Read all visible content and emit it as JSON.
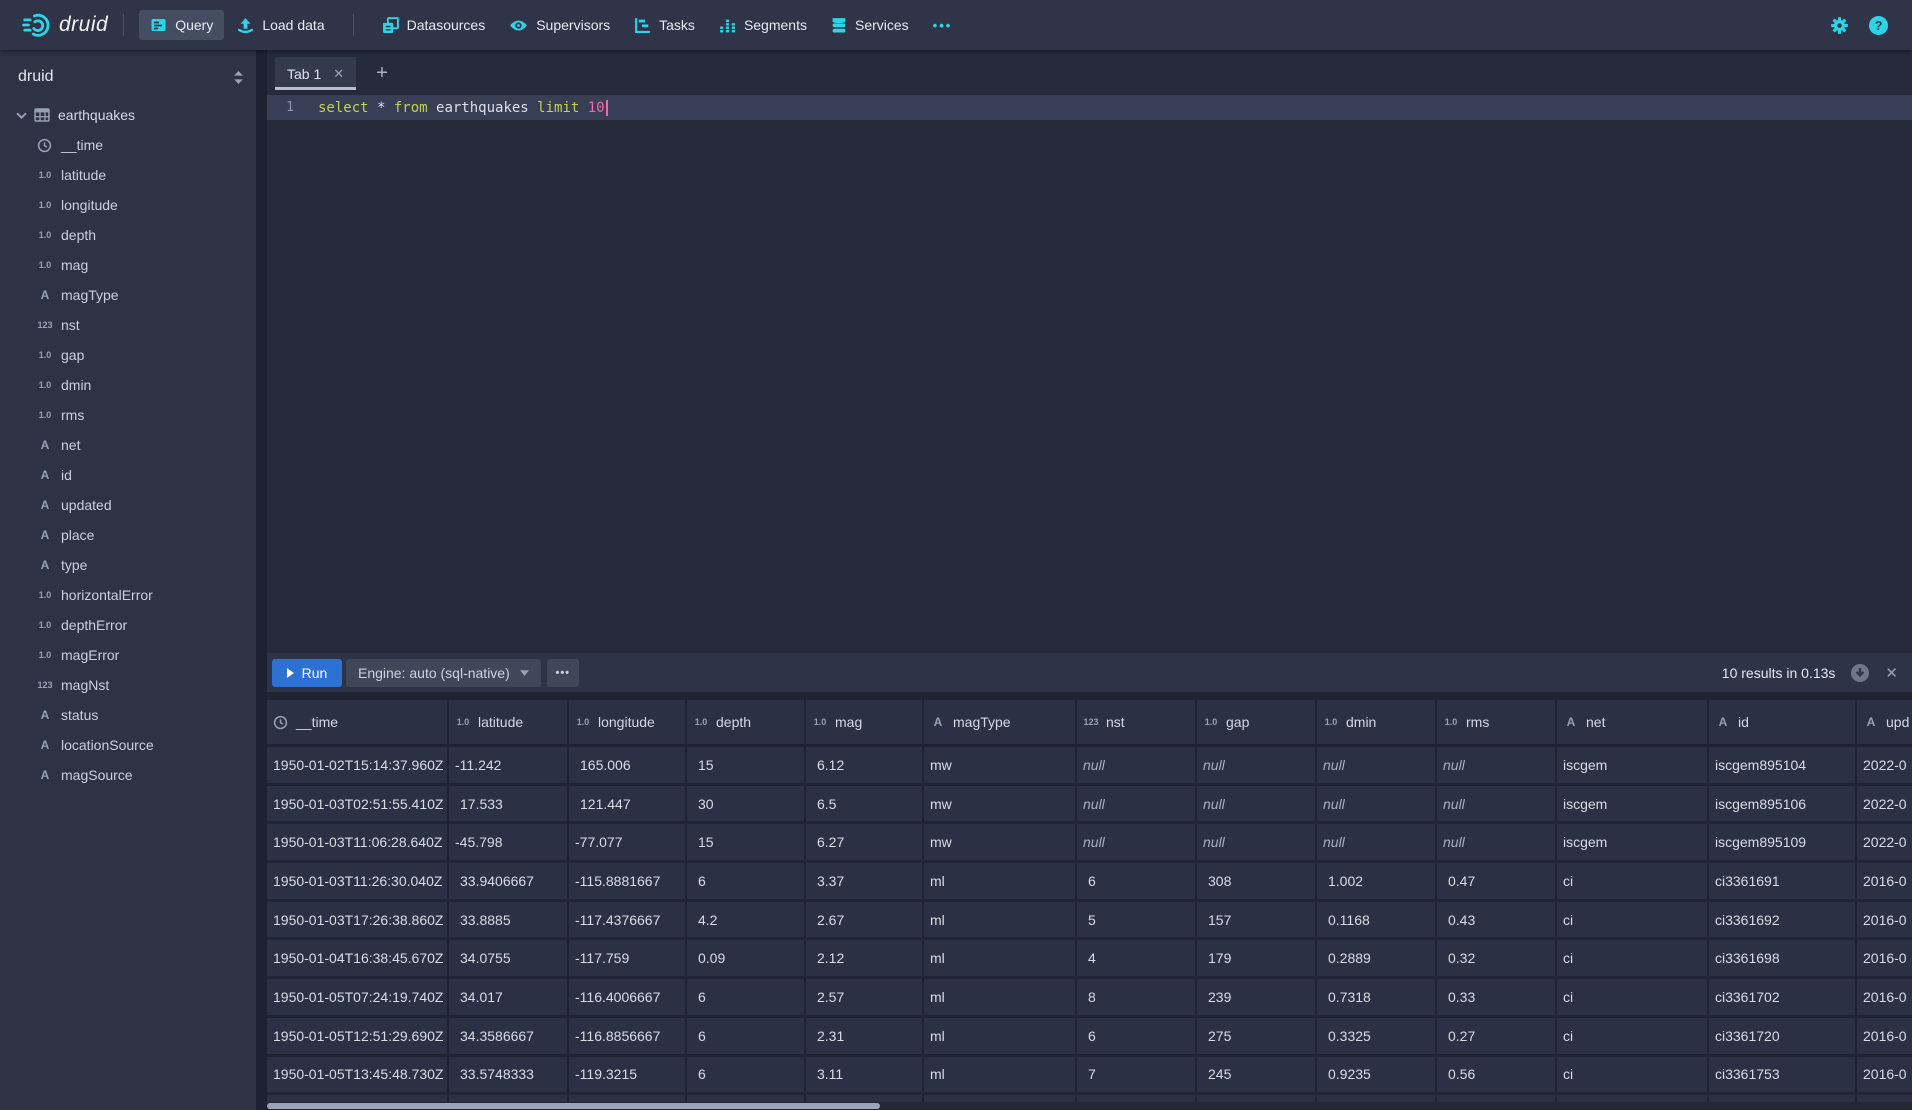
{
  "navbar": {
    "brand": "druid",
    "items": [
      {
        "label": "Query",
        "icon": "query-icon",
        "active": true,
        "divider_before": false
      },
      {
        "label": "Load data",
        "icon": "load-data-icon",
        "active": false,
        "divider_before": false
      },
      {
        "label": "Datasources",
        "icon": "datasources-icon",
        "active": false,
        "divider_before": true
      },
      {
        "label": "Supervisors",
        "icon": "supervisors-icon",
        "active": false,
        "divider_before": false
      },
      {
        "label": "Tasks",
        "icon": "tasks-icon",
        "active": false,
        "divider_before": false
      },
      {
        "label": "Segments",
        "icon": "segments-icon",
        "active": false,
        "divider_before": false
      },
      {
        "label": "Services",
        "icon": "services-icon",
        "active": false,
        "divider_before": false
      }
    ],
    "more_label": "•••",
    "accent_color": "#2cd5e6"
  },
  "sidebar": {
    "schema": "druid",
    "table": "earthquakes",
    "fields": [
      {
        "name": "__time",
        "type": "time"
      },
      {
        "name": "latitude",
        "type": "float"
      },
      {
        "name": "longitude",
        "type": "float"
      },
      {
        "name": "depth",
        "type": "float"
      },
      {
        "name": "mag",
        "type": "float"
      },
      {
        "name": "magType",
        "type": "string"
      },
      {
        "name": "nst",
        "type": "int"
      },
      {
        "name": "gap",
        "type": "float"
      },
      {
        "name": "dmin",
        "type": "float"
      },
      {
        "name": "rms",
        "type": "float"
      },
      {
        "name": "net",
        "type": "string"
      },
      {
        "name": "id",
        "type": "string"
      },
      {
        "name": "updated",
        "type": "string"
      },
      {
        "name": "place",
        "type": "string"
      },
      {
        "name": "type",
        "type": "string"
      },
      {
        "name": "horizontalError",
        "type": "float"
      },
      {
        "name": "depthError",
        "type": "float"
      },
      {
        "name": "magError",
        "type": "float"
      },
      {
        "name": "magNst",
        "type": "int"
      },
      {
        "name": "status",
        "type": "string"
      },
      {
        "name": "locationSource",
        "type": "string"
      },
      {
        "name": "magSource",
        "type": "string"
      }
    ]
  },
  "type_tags": {
    "float": "1.0",
    "int": "123",
    "string": "A"
  },
  "tabs": {
    "active": "Tab 1",
    "add_label": "+"
  },
  "editor": {
    "line_number": "1",
    "tokens": [
      {
        "text": "select",
        "type": "keyword"
      },
      {
        "text": "*",
        "type": "plain"
      },
      {
        "text": "from",
        "type": "keyword"
      },
      {
        "text": "earthquakes",
        "type": "plain"
      },
      {
        "text": "limit",
        "type": "keyword"
      },
      {
        "text": "10",
        "type": "number"
      }
    ]
  },
  "runbar": {
    "run_label": "Run",
    "engine_label": "Engine: auto (sql-native)",
    "more_label": "•••",
    "results_text": "10 results in 0.13s",
    "run_color": "#2d72d2"
  },
  "table": {
    "columns": [
      {
        "label": "__time",
        "type": "time"
      },
      {
        "label": "latitude",
        "type": "float"
      },
      {
        "label": "longitude",
        "type": "float"
      },
      {
        "label": "depth",
        "type": "float"
      },
      {
        "label": "mag",
        "type": "float"
      },
      {
        "label": "magType",
        "type": "string"
      },
      {
        "label": "nst",
        "type": "int"
      },
      {
        "label": "gap",
        "type": "float"
      },
      {
        "label": "dmin",
        "type": "float"
      },
      {
        "label": "rms",
        "type": "float"
      },
      {
        "label": "net",
        "type": "string"
      },
      {
        "label": "id",
        "type": "string"
      },
      {
        "label": "upd",
        "type": "string"
      }
    ],
    "rows": [
      [
        "1950-01-02T15:14:37.960Z",
        "-11.242",
        "165.006",
        "15",
        "6.12",
        "mw",
        "null",
        "null",
        "null",
        "null",
        "iscgem",
        "iscgem895104",
        "2022-0"
      ],
      [
        "1950-01-03T02:51:55.410Z",
        "17.533",
        "121.447",
        "30",
        "6.5",
        "mw",
        "null",
        "null",
        "null",
        "null",
        "iscgem",
        "iscgem895106",
        "2022-0"
      ],
      [
        "1950-01-03T11:06:28.640Z",
        "-45.798",
        "-77.077",
        "15",
        "6.27",
        "mw",
        "null",
        "null",
        "null",
        "null",
        "iscgem",
        "iscgem895109",
        "2022-0"
      ],
      [
        "1950-01-03T11:26:30.040Z",
        "33.9406667",
        "-115.8881667",
        "6",
        "3.37",
        "ml",
        "6",
        "308",
        "1.002",
        "0.47",
        "ci",
        "ci3361691",
        "2016-0"
      ],
      [
        "1950-01-03T17:26:38.860Z",
        "33.8885",
        "-117.4376667",
        "4.2",
        "2.67",
        "ml",
        "5",
        "157",
        "0.1168",
        "0.43",
        "ci",
        "ci3361692",
        "2016-0"
      ],
      [
        "1950-01-04T16:38:45.670Z",
        "34.0755",
        "-117.759",
        "0.09",
        "2.12",
        "ml",
        "4",
        "179",
        "0.2889",
        "0.32",
        "ci",
        "ci3361698",
        "2016-0"
      ],
      [
        "1950-01-05T07:24:19.740Z",
        "34.017",
        "-116.4006667",
        "6",
        "2.57",
        "ml",
        "8",
        "239",
        "0.7318",
        "0.33",
        "ci",
        "ci3361702",
        "2016-0"
      ],
      [
        "1950-01-05T12:51:29.690Z",
        "34.3586667",
        "-116.8856667",
        "6",
        "2.31",
        "ml",
        "6",
        "275",
        "0.3325",
        "0.27",
        "ci",
        "ci3361720",
        "2016-0"
      ],
      [
        "1950-01-05T13:45:48.730Z",
        "33.5748333",
        "-119.3215",
        "6",
        "3.11",
        "ml",
        "7",
        "245",
        "0.9235",
        "0.56",
        "ci",
        "ci3361753",
        "2016-0"
      ]
    ]
  }
}
